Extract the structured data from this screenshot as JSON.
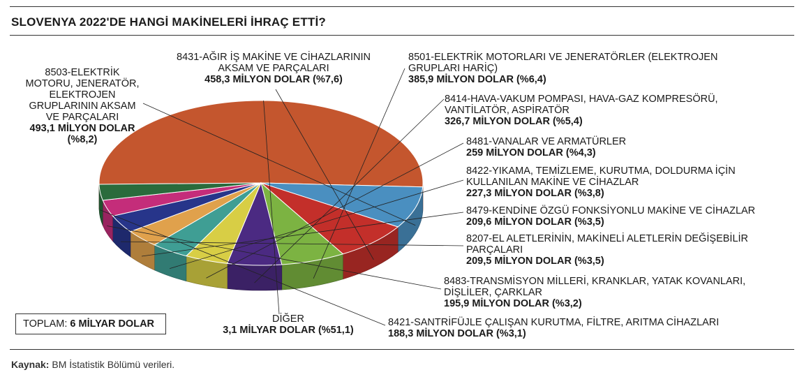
{
  "title": "SLOVENYA 2022'DE HANGİ MAKİNELERİ İHRAÇ ETTİ?",
  "total": {
    "label": "TOPLAM:",
    "value": "6 MİLYAR DOLAR"
  },
  "source": {
    "label": "Kaynak:",
    "text": "BM İstatistik Bölümü verileri."
  },
  "chart_data": {
    "type": "pie",
    "title": "SLOVENYA 2022'DE HANGİ MAKİNELERİ İHRAÇ ETTİ?",
    "unit": "MİLYON DOLAR",
    "slices": [
      {
        "name": "DİĞER",
        "value_label": "3,1 MİLYAR DOLAR (%51,1)",
        "value": 3100,
        "percent": 51.1,
        "color": "#c4562e"
      },
      {
        "name": "8503-ELEKTRİK MOTORU, JENERATÖR, ELEKTROJEN GRUPLARININ AKSAM VE PARÇALARI",
        "value_label": "493,1 MİLYON DOLAR (%8,2)",
        "value": 493.1,
        "percent": 8.2,
        "color": "#4a8fc0"
      },
      {
        "name": "8431-AĞIR İŞ MAKİNE VE CİHAZLARININ AKSAM VE PARÇALARI",
        "value_label": "458,3 MİLYON DOLAR (%7,6)",
        "value": 458.3,
        "percent": 7.6,
        "color": "#c32f2a"
      },
      {
        "name": "8501-ELEKTRİK MOTORLARI VE JENERATÖRLER (ELEKTROJEN GRUPLARI HARİÇ)",
        "value_label": "385,9 MİLYON DOLAR (%6,4)",
        "value": 385.9,
        "percent": 6.4,
        "color": "#7cb342"
      },
      {
        "name": "8414-HAVA-VAKUM POMPASI, HAVA-GAZ KOMPRESÖRÜ, VANTİLATÖR, ASPİRATÖR",
        "value_label": "326,7 MİLYON DOLAR (%5,4)",
        "value": 326.7,
        "percent": 5.4,
        "color": "#4b2a82"
      },
      {
        "name": "8481-VANALAR VE ARMATÜRLER",
        "value_label": "259 MİLYON DOLAR (%4,3)",
        "value": 259,
        "percent": 4.3,
        "color": "#d8ce45"
      },
      {
        "name": "8422-YIKAMA, TEMİZLEME, KURUTMA, DOLDURMA İÇİN KULLANILAN MAKİNE VE CİHAZLAR",
        "value_label": "227,3 MİLYON DOLAR (%3,8)",
        "value": 227.3,
        "percent": 3.8,
        "color": "#3f9e94"
      },
      {
        "name": "8479-KENDİNE ÖZGÜ FONKSİYONLU MAKİNE VE CİHAZLAR",
        "value_label": "209,6 MİLYON DOLAR (%3,5)",
        "value": 209.6,
        "percent": 3.5,
        "color": "#e0a14c"
      },
      {
        "name": "8207-EL ALETLERİNİN, MAKİNELİ ALETLERİN DEĞİŞEBİLİR PARÇALARI",
        "value_label": "209,5 MİLYON DOLAR (%3,5)",
        "value": 209.5,
        "percent": 3.5,
        "color": "#27358a"
      },
      {
        "name": "8483-TRANSMİSYON MİLLERİ, KRANKLAR, YATAK KOVANLARI, DİŞLİLER, ÇARKLAR",
        "value_label": "195,9 MİLYON DOLAR (%3,2)",
        "value": 195.9,
        "percent": 3.2,
        "color": "#c42d7a"
      },
      {
        "name": "8421-SANTRİFÜJLE ÇALIŞAN KURUTMA, FİLTRE, ARITMA CİHAZLARI",
        "value_label": "188,3 MİLYON DOLAR (%3,1)",
        "value": 188.3,
        "percent": 3.1,
        "color": "#2a6b3c"
      }
    ]
  },
  "labels": {
    "l8503": {
      "lines": [
        "8503-ELEKTRİK",
        "MOTORU, JENERATÖR,",
        "ELEKTROJEN",
        "GRUPLARININ AKSAM",
        "VE PARÇALARI"
      ],
      "value": "493,1 MİLYON DOLAR",
      "pct": "(%8,2)"
    },
    "l8431": {
      "lines": [
        "8431-AĞIR İŞ MAKİNE VE CİHAZLARININ",
        "AKSAM VE PARÇALARI"
      ],
      "value": "458,3 MİLYON DOLAR (%7,6)"
    },
    "l8501": {
      "lines": [
        "8501-ELEKTRİK MOTORLARI VE JENERATÖRLER (ELEKTROJEN",
        "GRUPLARI HARİÇ)"
      ],
      "value": "385,9 MİLYON DOLAR (%6,4)"
    },
    "l8414": {
      "lines": [
        "8414-HAVA-VAKUM POMPASI, HAVA-GAZ KOMPRESÖRÜ,",
        "VANTİLATÖR, ASPİRATÖR"
      ],
      "value": "326,7 MİLYON DOLAR (%5,4)"
    },
    "l8481": {
      "lines": [
        "8481-VANALAR VE ARMATÜRLER"
      ],
      "value": "259 MİLYON DOLAR (%4,3)"
    },
    "l8422": {
      "lines": [
        "8422-YIKAMA, TEMİZLEME, KURUTMA, DOLDURMA İÇİN",
        "KULLANILAN MAKİNE VE CİHAZLAR"
      ],
      "value": "227,3 MİLYON DOLAR (%3,8)"
    },
    "l8479": {
      "lines": [
        "8479-KENDİNE ÖZGÜ FONKSİYONLU MAKİNE VE CİHAZLAR"
      ],
      "value": "209,6 MİLYON DOLAR (%3,5)"
    },
    "l8207": {
      "lines": [
        "8207-EL ALETLERİNİN, MAKİNELİ ALETLERİN DEĞİŞEBİLİR",
        "PARÇALARI"
      ],
      "value": "209,5 MİLYON DOLAR (%3,5)"
    },
    "l8483": {
      "lines": [
        "8483-TRANSMİSYON MİLLERİ, KRANKLAR, YATAK KOVANLARI,",
        "DİŞLİLER, ÇARKLAR"
      ],
      "value": "195,9 MİLYON DOLAR (%3,2)"
    },
    "l8421": {
      "lines": [
        "8421-SANTRİFÜJLE ÇALIŞAN KURUTMA, FİLTRE, ARITMA CİHAZLARI"
      ],
      "value": "188,3 MİLYON DOLAR (%3,1)"
    },
    "ldiger": {
      "lines": [
        "DİĞER"
      ],
      "value": "3,1 MİLYAR DOLAR (%51,1)"
    }
  }
}
